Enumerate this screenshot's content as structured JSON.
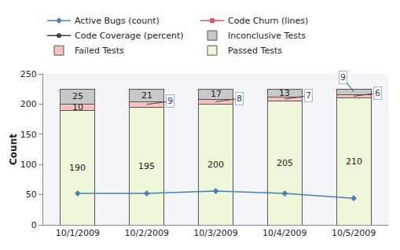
{
  "chart_data": {
    "type": "bar",
    "y_label": "Count",
    "categories": [
      "10/1/2009",
      "10/2/2009",
      "10/3/2009",
      "10/4/2009",
      "10/5/2009"
    ],
    "series": [
      {
        "name": "Active Bugs (count)",
        "type": "line",
        "color": "#4a7ebb",
        "marker": "diamond",
        "values": [
          52,
          52,
          56,
          52,
          44
        ]
      },
      {
        "name": "Code Churn (lines)",
        "type": "line",
        "color": "#e0505a",
        "marker": "square",
        "values": [
          null,
          null,
          null,
          null,
          null
        ]
      },
      {
        "name": "Code Coverage (percent)",
        "type": "line",
        "color": "#404040",
        "marker": "circle",
        "values": [
          null,
          null,
          null,
          null,
          null
        ]
      },
      {
        "name": "Inconclusive Tests",
        "type": "bar",
        "color": "#c8c8c8",
        "values": [
          25,
          21,
          17,
          13,
          9
        ]
      },
      {
        "name": "Failed Tests",
        "type": "bar",
        "color": "#f7c1c1",
        "values": [
          10,
          9,
          8,
          7,
          6
        ]
      },
      {
        "name": "Passed Tests",
        "type": "bar",
        "color": "#eef7d9",
        "values": [
          190,
          195,
          200,
          205,
          210
        ]
      }
    ],
    "stacked": true,
    "data_labels": true,
    "ylim": [
      0,
      250
    ],
    "yticks": [
      0,
      50,
      100,
      150,
      200,
      250
    ],
    "grid": false,
    "legend": "top"
  }
}
